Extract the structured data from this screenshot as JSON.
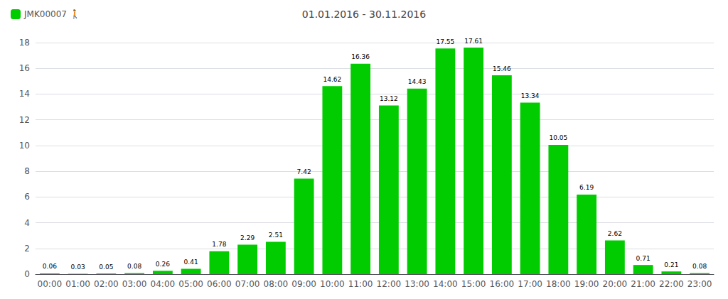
{
  "chart_data": {
    "type": "bar",
    "title": "01.01.2016 - 30.11.2016",
    "series": [
      {
        "name": "JMK00007 🚶",
        "color": "#00cc00",
        "values": [
          0.06,
          0.03,
          0.05,
          0.08,
          0.26,
          0.41,
          1.78,
          2.29,
          2.51,
          7.42,
          14.62,
          16.36,
          13.12,
          14.43,
          17.55,
          17.61,
          15.46,
          13.34,
          10.05,
          6.19,
          2.62,
          0.71,
          0.21,
          0.08
        ]
      }
    ],
    "categories": [
      "00:00",
      "01:00",
      "02:00",
      "03:00",
      "04:00",
      "05:00",
      "06:00",
      "07:00",
      "08:00",
      "09:00",
      "10:00",
      "11:00",
      "12:00",
      "13:00",
      "14:00",
      "15:00",
      "16:00",
      "17:00",
      "18:00",
      "19:00",
      "20:00",
      "21:00",
      "22:00",
      "23:00"
    ],
    "ylim": [
      0,
      18
    ],
    "yticks": [
      0,
      2,
      4,
      6,
      8,
      10,
      12,
      14,
      16,
      18
    ],
    "grid": true,
    "legend": "upper left",
    "data_labels": true
  }
}
